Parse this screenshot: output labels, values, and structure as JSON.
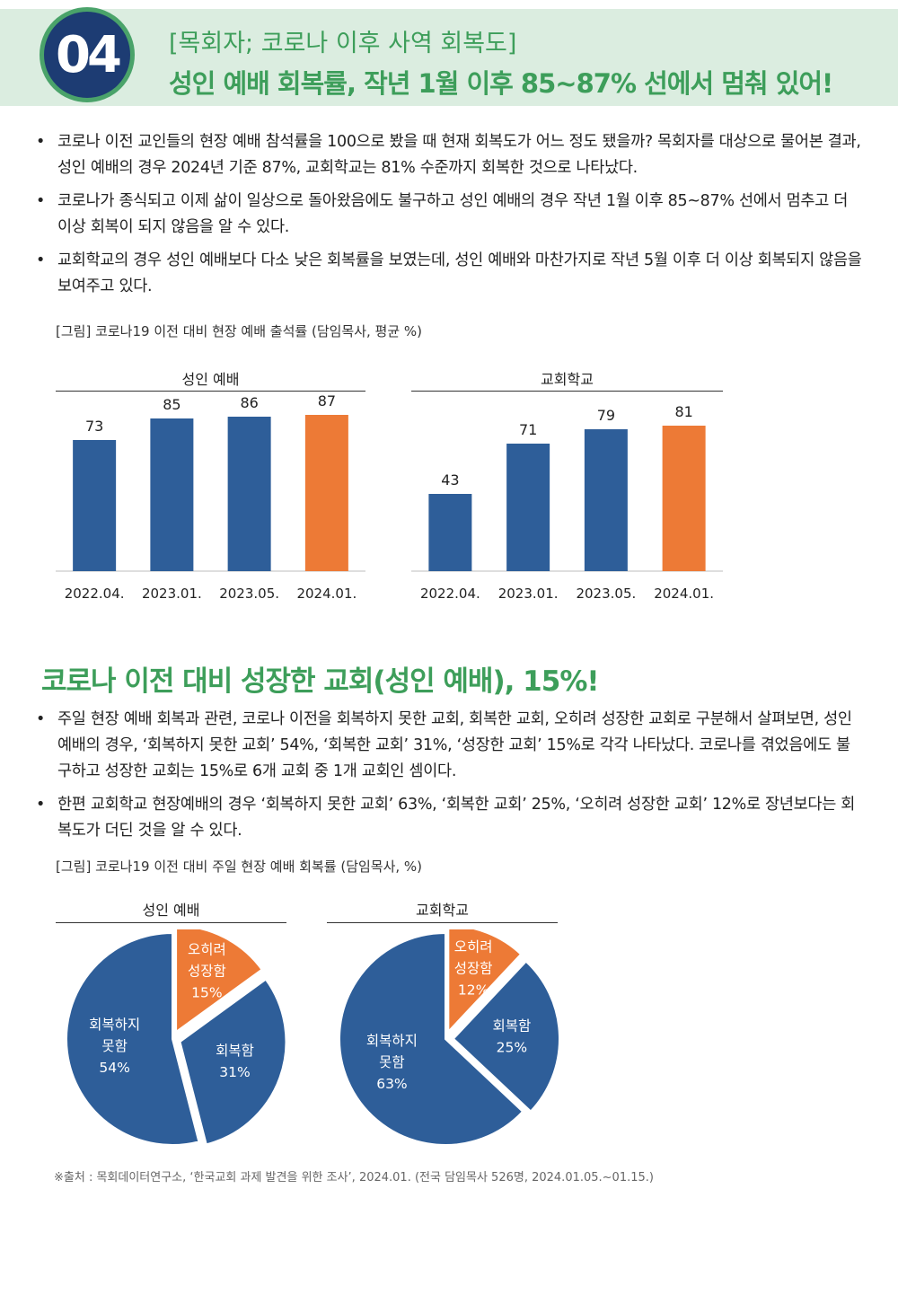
{
  "header": {
    "number": "04",
    "subtitle": "[목회자; 코로나 이후 사역 회복도]",
    "title": "성인 예배 회복률, 작년 1월 이후 85~87% 선에서 멈춰 있어!"
  },
  "section1": {
    "bullets": [
      "코로나 이전 교인들의 현장 예배 참석률을 100으로 봤을 때 현재 회복도가 어느 정도 됐을까? 목회자를 대상으로 물어본 결과, 성인 예배의 경우 2024년 기준 87%, 교회학교는 81% 수준까지 회복한 것으로 나타났다.",
      "코로나가 종식되고 이제 삶이 일상으로 돌아왔음에도 불구하고 성인 예배의 경우 작년 1월 이후 85~87% 선에서 멈추고 더 이상 회복이 되지 않음을 알 수 있다.",
      "교회학교의 경우 성인 예배보다 다소 낮은 회복률을 보였는데, 성인 예배와 마찬가지로 작년 5월 이후 더 이상 회복되지 않음을 보여주고 있다."
    ],
    "figure_caption": "[그림] 코로나19 이전 대비 현장 예배 출석률 (담임목사, 평균 %)"
  },
  "section2": {
    "title": "코로나 이전 대비 성장한 교회(성인 예배), 15%!",
    "bullets": [
      "주일 현장 예배 회복과 관련, 코로나 이전을 회복하지 못한 교회, 회복한 교회, 오히려 성장한 교회로 구분해서 살펴보면, 성인 예배의 경우, ‘회복하지 못한 교회’ 54%, ‘회복한 교회’ 31%, ‘성장한 교회’ 15%로 각각 나타났다. 코로나를 겪었음에도 불구하고 성장한 교회는 15%로 6개 교회 중 1개 교회인 셈이다.",
      "한편 교회학교 현장예배의 경우 ‘회복하지 못한 교회’ 63%, ‘회복한 교회’ 25%, ‘오히려 성장한 교회’ 12%로 장년보다는 회복도가 더딘 것을 알 수 있다."
    ],
    "figure_caption": "[그림] 코로나19 이전 대비 주일 현장 예배 회복률 (담임목사, %)"
  },
  "source": "※출처 : 목회데이터연구소, ‘한국교회 과제 발견을 위한 조사’, 2024.01. (전국 담임목사 526명, 2024.01.05.~01.15.)",
  "colors": {
    "blue": "#2e5e99",
    "orange": "#ed7a36",
    "green": "#3d9e5a",
    "navy": "#1d3c73"
  },
  "chart_data": [
    {
      "type": "bar",
      "title": "성인 예배",
      "categories": [
        "2022.04.",
        "2023.01.",
        "2023.05.",
        "2024.01."
      ],
      "values": [
        73,
        85,
        86,
        87
      ],
      "highlight_last": true,
      "ylim": [
        0,
        100
      ]
    },
    {
      "type": "bar",
      "title": "교회학교",
      "categories": [
        "2022.04.",
        "2023.01.",
        "2023.05.",
        "2024.01."
      ],
      "values": [
        43,
        71,
        79,
        81
      ],
      "highlight_last": true,
      "ylim": [
        0,
        100
      ]
    },
    {
      "type": "pie",
      "title": "성인 예배",
      "slices": [
        {
          "label_lines": [
            "오히려",
            "성장함"
          ],
          "value": 15,
          "value_label": "15%",
          "color": "#ed7a36",
          "exploded": true
        },
        {
          "label_lines": [
            "회복함"
          ],
          "value": 31,
          "value_label": "31%",
          "color": "#2e5e99",
          "exploded": true
        },
        {
          "label_lines": [
            "회복하지",
            "못함"
          ],
          "value": 54,
          "value_label": "54%",
          "color": "#2e5e99",
          "exploded": false
        }
      ]
    },
    {
      "type": "pie",
      "title": "교회학교",
      "slices": [
        {
          "label_lines": [
            "오히려",
            "성장함"
          ],
          "value": 12,
          "value_label": "12%",
          "color": "#ed7a36",
          "exploded": true
        },
        {
          "label_lines": [
            "회복함"
          ],
          "value": 25,
          "value_label": "25%",
          "color": "#2e5e99",
          "exploded": true
        },
        {
          "label_lines": [
            "회복하지",
            "못함"
          ],
          "value": 63,
          "value_label": "63%",
          "color": "#2e5e99",
          "exploded": false
        }
      ]
    }
  ]
}
